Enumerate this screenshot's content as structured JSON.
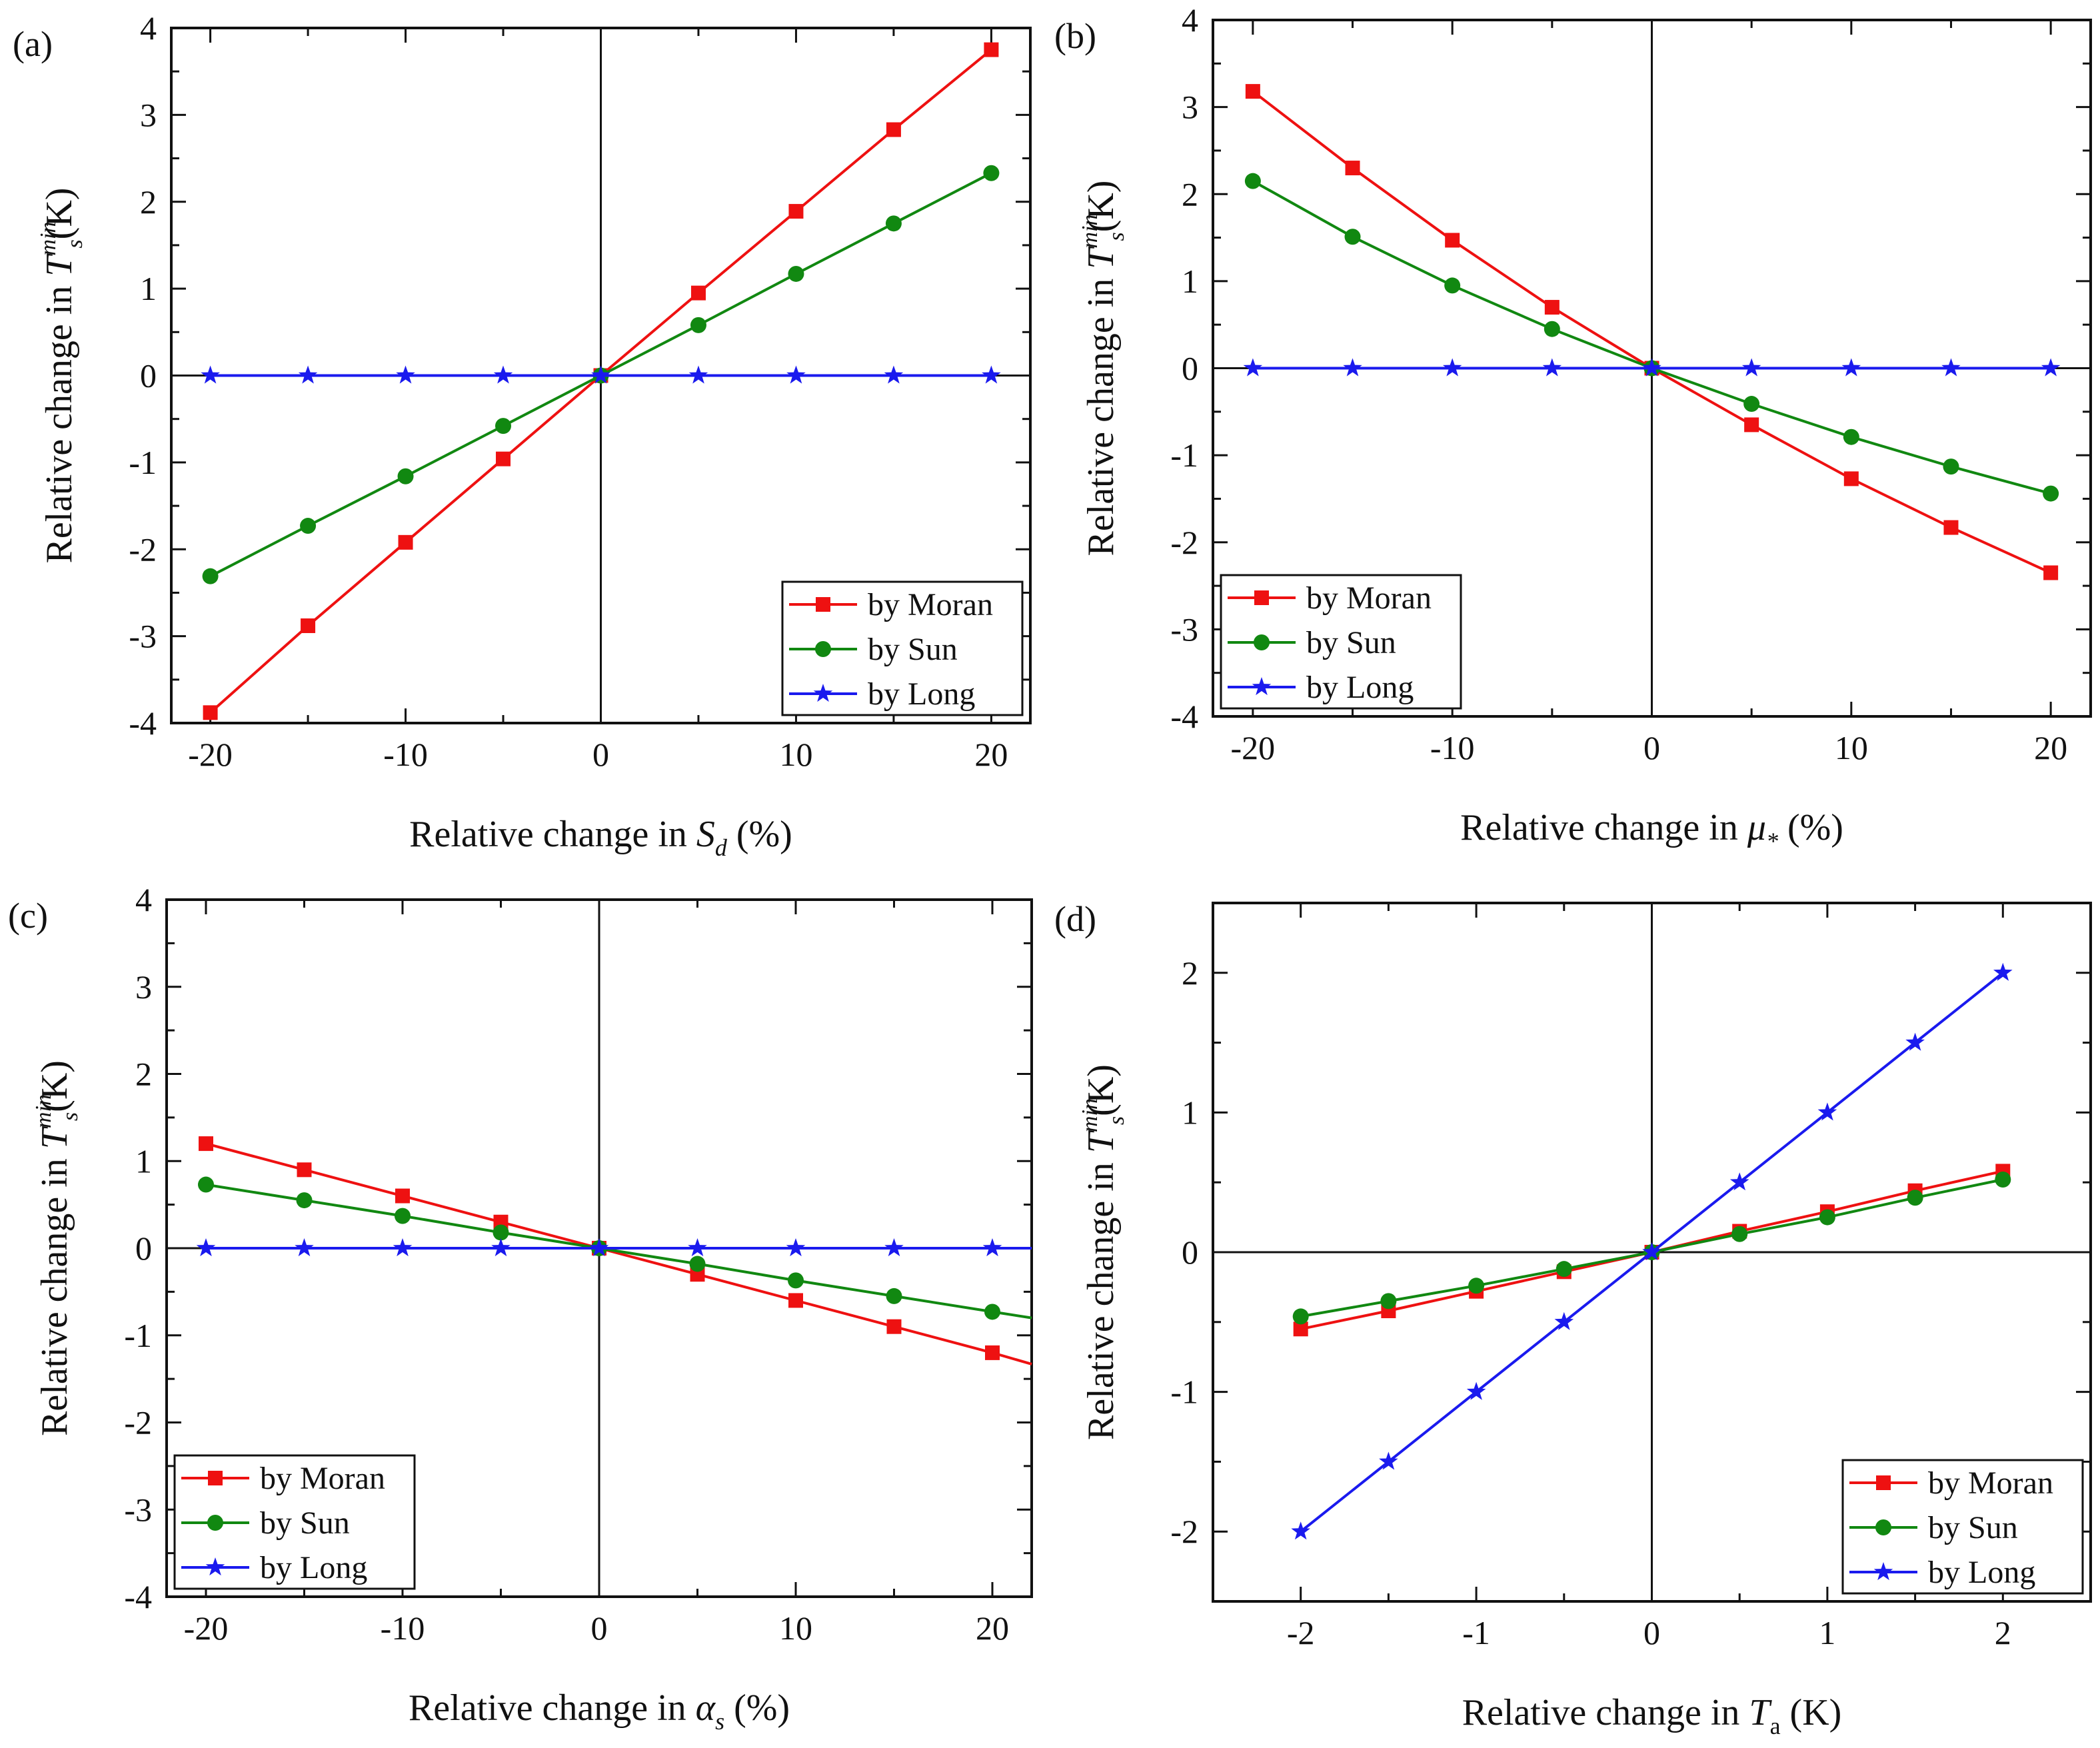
{
  "colors": {
    "moran": "#ee1111",
    "sun": "#118811",
    "long": "#1a1aee",
    "axis": "#111111"
  },
  "chart_data": [
    {
      "type": "line",
      "panel_label": "(a)",
      "title": "",
      "xlabel": {
        "prefix": "Relative change in ",
        "sym": "S",
        "sub": "d",
        "suffix": " (%)"
      },
      "ylabel": {
        "prefix": "Relative change in ",
        "sym": "T",
        "sup": "min",
        "sub": "s",
        "suffix": "(K)"
      },
      "xlim": [
        -22,
        22
      ],
      "ylim": [
        -4,
        4
      ],
      "x_ticks": [
        -20,
        -10,
        0,
        10,
        20
      ],
      "x_tick_labels": [
        "-20",
        "-10",
        "0",
        "10",
        "20"
      ],
      "y_ticks": [
        -4,
        -3,
        -2,
        -1,
        0,
        1,
        2,
        3,
        4
      ],
      "y_tick_labels": [
        "-4",
        "-3",
        "-2",
        "-1",
        "0",
        "1",
        "2",
        "3",
        "4"
      ],
      "legend_position": "bottom-right",
      "x": [
        -20,
        -15,
        -10,
        -5,
        0,
        5,
        10,
        15,
        20
      ],
      "series": [
        {
          "name": "by Moran",
          "marker": "square",
          "values": [
            -3.88,
            -2.88,
            -1.92,
            -0.96,
            0,
            0.95,
            1.89,
            2.83,
            3.75
          ]
        },
        {
          "name": "by Sun",
          "marker": "circle",
          "values": [
            -2.31,
            -1.73,
            -1.16,
            -0.58,
            0,
            0.58,
            1.17,
            1.75,
            2.33
          ]
        },
        {
          "name": "by Long",
          "marker": "star",
          "values": [
            0,
            0,
            0,
            0,
            0,
            0,
            0,
            0,
            0
          ]
        }
      ]
    },
    {
      "type": "line",
      "panel_label": "(b)",
      "title": "",
      "xlabel": {
        "prefix": "Relative change in ",
        "sym": "μ",
        "sub": "*",
        "suffix": " (%)"
      },
      "ylabel": {
        "prefix": "Relative change in ",
        "sym": "T",
        "sup": "min",
        "sub": "s",
        "suffix": "(K)"
      },
      "xlim": [
        -22,
        22
      ],
      "ylim": [
        -4,
        4
      ],
      "x_ticks": [
        -20,
        -10,
        0,
        10,
        20
      ],
      "x_tick_labels": [
        "-20",
        "-10",
        "0",
        "10",
        "20"
      ],
      "y_ticks": [
        -4,
        -3,
        -2,
        -1,
        0,
        1,
        2,
        3,
        4
      ],
      "y_tick_labels": [
        "-4",
        "-3",
        "-2",
        "-1",
        "0",
        "1",
        "2",
        "3",
        "4"
      ],
      "legend_position": "bottom-left",
      "x": [
        -20,
        -15,
        -10,
        -5,
        0,
        5,
        10,
        15,
        20
      ],
      "series": [
        {
          "name": "by Moran",
          "marker": "square",
          "values": [
            3.18,
            2.3,
            1.47,
            0.7,
            0,
            -0.65,
            -1.27,
            -1.83,
            -2.35
          ]
        },
        {
          "name": "by Sun",
          "marker": "circle",
          "values": [
            2.15,
            1.51,
            0.95,
            0.45,
            0,
            -0.41,
            -0.79,
            -1.13,
            -1.44
          ]
        },
        {
          "name": "by Long",
          "marker": "star",
          "values": [
            0,
            0,
            0,
            0,
            0,
            0,
            0,
            0,
            0
          ]
        }
      ]
    },
    {
      "type": "line",
      "panel_label": "(c)",
      "title": "",
      "xlabel": {
        "prefix": "Relative change in ",
        "sym": "α",
        "sub": "s",
        "suffix": " (%)"
      },
      "ylabel": {
        "prefix": "Relative change in ",
        "sym": "T",
        "sup": "min",
        "sub": "s",
        "suffix": "(K)"
      },
      "xlim": [
        -22,
        22
      ],
      "ylim": [
        -4,
        4
      ],
      "x_ticks": [
        -20,
        -10,
        0,
        10,
        20
      ],
      "x_tick_labels": [
        "-20",
        "-10",
        "0",
        "10",
        "20"
      ],
      "y_ticks": [
        -4,
        -3,
        -2,
        -1,
        0,
        1,
        2,
        3,
        4
      ],
      "y_tick_labels": [
        "-4",
        "-3",
        "-2",
        "-1",
        "0",
        "1",
        "2",
        "3",
        "4"
      ],
      "legend_position": "bottom-left",
      "x": [
        -20,
        -15,
        -10,
        -5,
        0,
        5,
        10,
        15,
        20
      ],
      "line_extends_to": 22,
      "series": [
        {
          "name": "by Moran",
          "marker": "square",
          "values": [
            1.2,
            0.9,
            0.6,
            0.3,
            0,
            -0.3,
            -0.6,
            -0.9,
            -1.2
          ],
          "extension_value": -1.33
        },
        {
          "name": "by Sun",
          "marker": "circle",
          "values": [
            0.73,
            0.55,
            0.37,
            0.18,
            0,
            -0.18,
            -0.37,
            -0.55,
            -0.73
          ],
          "extension_value": -0.8
        },
        {
          "name": "by Long",
          "marker": "star",
          "values": [
            0,
            0,
            0,
            0,
            0,
            0,
            0,
            0,
            0
          ],
          "extension_value": 0
        }
      ]
    },
    {
      "type": "line",
      "panel_label": "(d)",
      "title": "",
      "xlabel": {
        "prefix": "Relative change in ",
        "sym": "T",
        "sub": "a",
        "suffix": " (K)"
      },
      "ylabel": {
        "prefix": "Relative change in ",
        "sym": "T",
        "sup": "min",
        "sub": "s",
        "suffix": "(K)"
      },
      "xlim": [
        -2.5,
        2.5
      ],
      "ylim": [
        -2.5,
        2.5
      ],
      "x_ticks": [
        -2,
        -1,
        0,
        1,
        2
      ],
      "x_tick_labels": [
        "-2",
        "-1",
        "0",
        "1",
        "2"
      ],
      "y_ticks": [
        -2,
        -1,
        0,
        1,
        2
      ],
      "y_tick_labels": [
        "-2",
        "-1",
        "0",
        "1",
        "2"
      ],
      "legend_position": "bottom-right",
      "x": [
        -2,
        -1.5,
        -1,
        -0.5,
        0,
        0.5,
        1,
        1.5,
        2
      ],
      "series": [
        {
          "name": "by Moran",
          "marker": "square",
          "values": [
            -0.55,
            -0.42,
            -0.28,
            -0.14,
            0,
            0.15,
            0.29,
            0.44,
            0.58
          ]
        },
        {
          "name": "by Sun",
          "marker": "circle",
          "values": [
            -0.46,
            -0.35,
            -0.24,
            -0.12,
            0,
            0.13,
            0.25,
            0.39,
            0.52
          ]
        },
        {
          "name": "by Long",
          "marker": "star",
          "values": [
            -2,
            -1.5,
            -1,
            -0.5,
            0,
            0.5,
            1,
            1.5,
            2
          ]
        }
      ]
    }
  ]
}
